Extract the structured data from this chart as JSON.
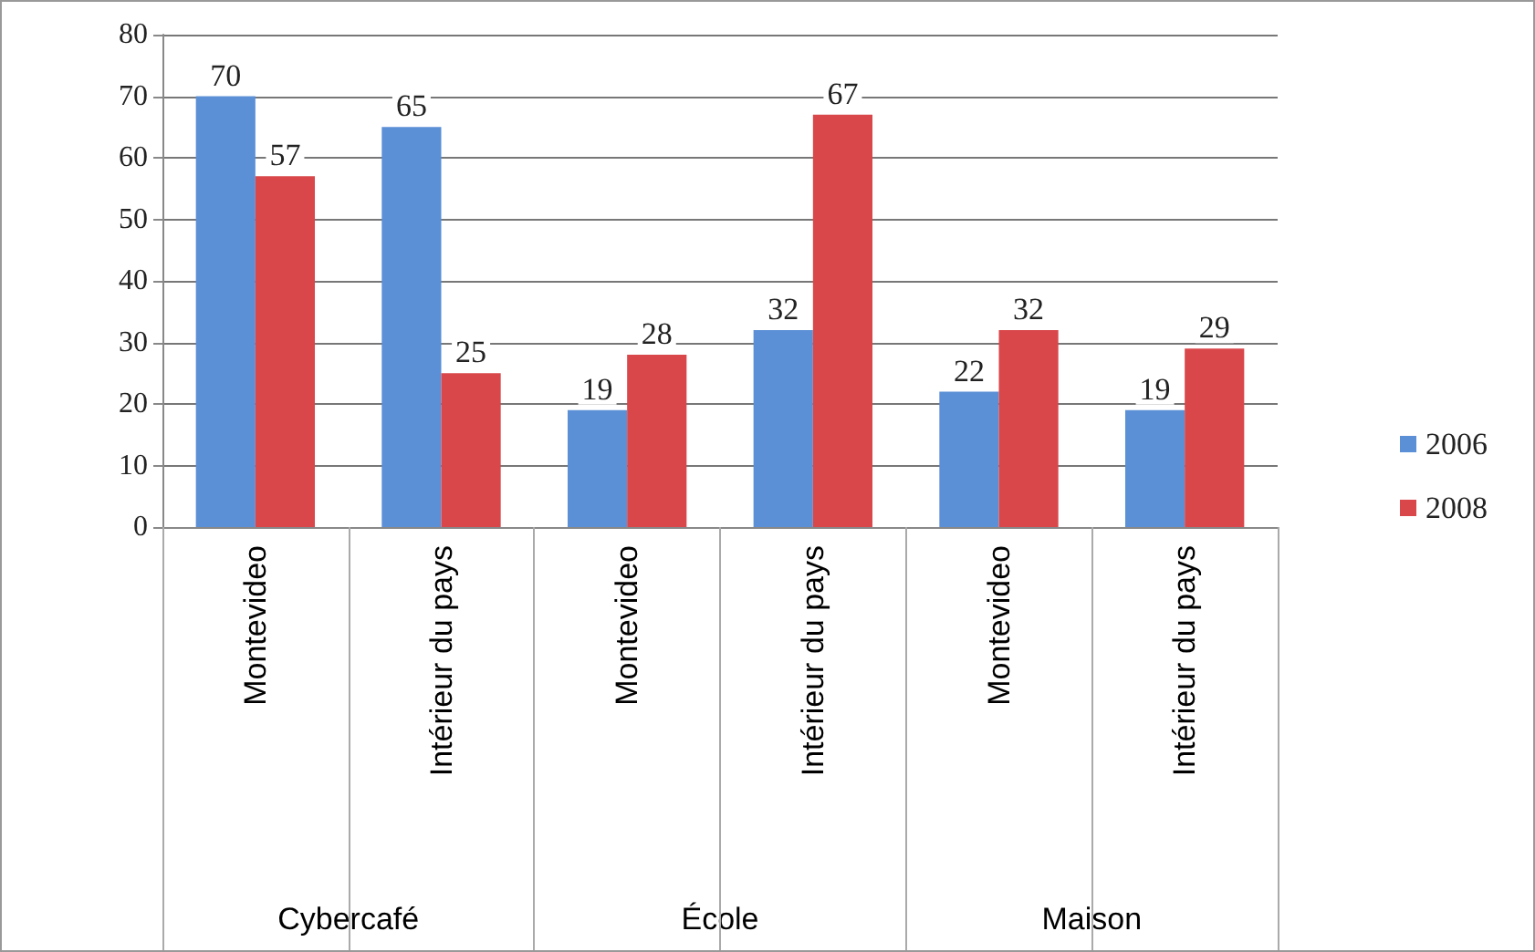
{
  "chart_data": {
    "type": "bar",
    "categories": [
      "Montevideo",
      "Intérieur du pays",
      "Montevideo",
      "Intérieur du pays",
      "Montevideo",
      "Intérieur du pays"
    ],
    "series": [
      {
        "name": "2006",
        "color": "#5b8fd6",
        "values": [
          70,
          65,
          19,
          32,
          22,
          19
        ]
      },
      {
        "name": "2008",
        "color": "#d9474a",
        "values": [
          57,
          25,
          28,
          67,
          32,
          29
        ]
      }
    ],
    "annotations": [
      "Cybercafé",
      "École",
      "Maison"
    ],
    "ylim": [
      0,
      80
    ],
    "yticks": [
      0,
      10,
      20,
      30,
      40,
      50,
      60,
      70,
      80
    ],
    "grid": "y",
    "legend": "right",
    "data_labels": true
  }
}
